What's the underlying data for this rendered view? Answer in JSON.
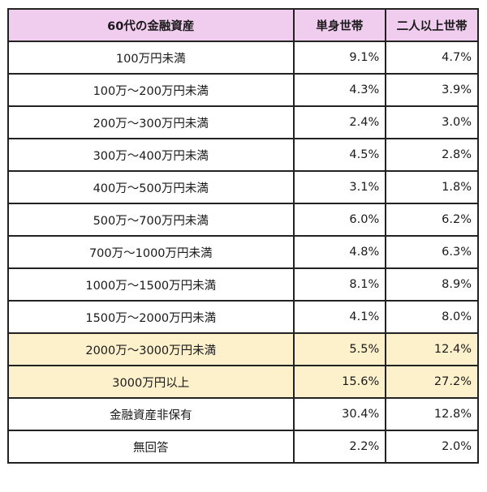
{
  "table": {
    "headers": [
      "60代の金融資産",
      "単身世帯",
      "二人以上世帯"
    ],
    "highlight_color": "#fdf1cc",
    "header_color": "#f0ccee",
    "rows": [
      {
        "label": "100万円未満",
        "single": "9.1%",
        "multi": "4.7%",
        "highlight": false
      },
      {
        "label": "100万〜200万円未満",
        "single": "4.3%",
        "multi": "3.9%",
        "highlight": false
      },
      {
        "label": "200万〜300万円未満",
        "single": "2.4%",
        "multi": "3.0%",
        "highlight": false
      },
      {
        "label": "300万〜400万円未満",
        "single": "4.5%",
        "multi": "2.8%",
        "highlight": false
      },
      {
        "label": "400万〜500万円未満",
        "single": "3.1%",
        "multi": "1.8%",
        "highlight": false
      },
      {
        "label": "500万〜700万円未満",
        "single": "6.0%",
        "multi": "6.2%",
        "highlight": false
      },
      {
        "label": "700万〜1000万円未満",
        "single": "4.8%",
        "multi": "6.3%",
        "highlight": false
      },
      {
        "label": "1000万〜1500万円未満",
        "single": "8.1%",
        "multi": "8.9%",
        "highlight": false
      },
      {
        "label": "1500万〜2000万円未満",
        "single": "4.1%",
        "multi": "8.0%",
        "highlight": false
      },
      {
        "label": "2000万〜3000万円未満",
        "single": "5.5%",
        "multi": "12.4%",
        "highlight": true
      },
      {
        "label": "3000万円以上",
        "single": "15.6%",
        "multi": "27.2%",
        "highlight": true
      },
      {
        "label": "金融資産非保有",
        "single": "30.4%",
        "multi": "12.8%",
        "highlight": false
      },
      {
        "label": "無回答",
        "single": "2.2%",
        "multi": "2.0%",
        "highlight": false
      }
    ]
  }
}
